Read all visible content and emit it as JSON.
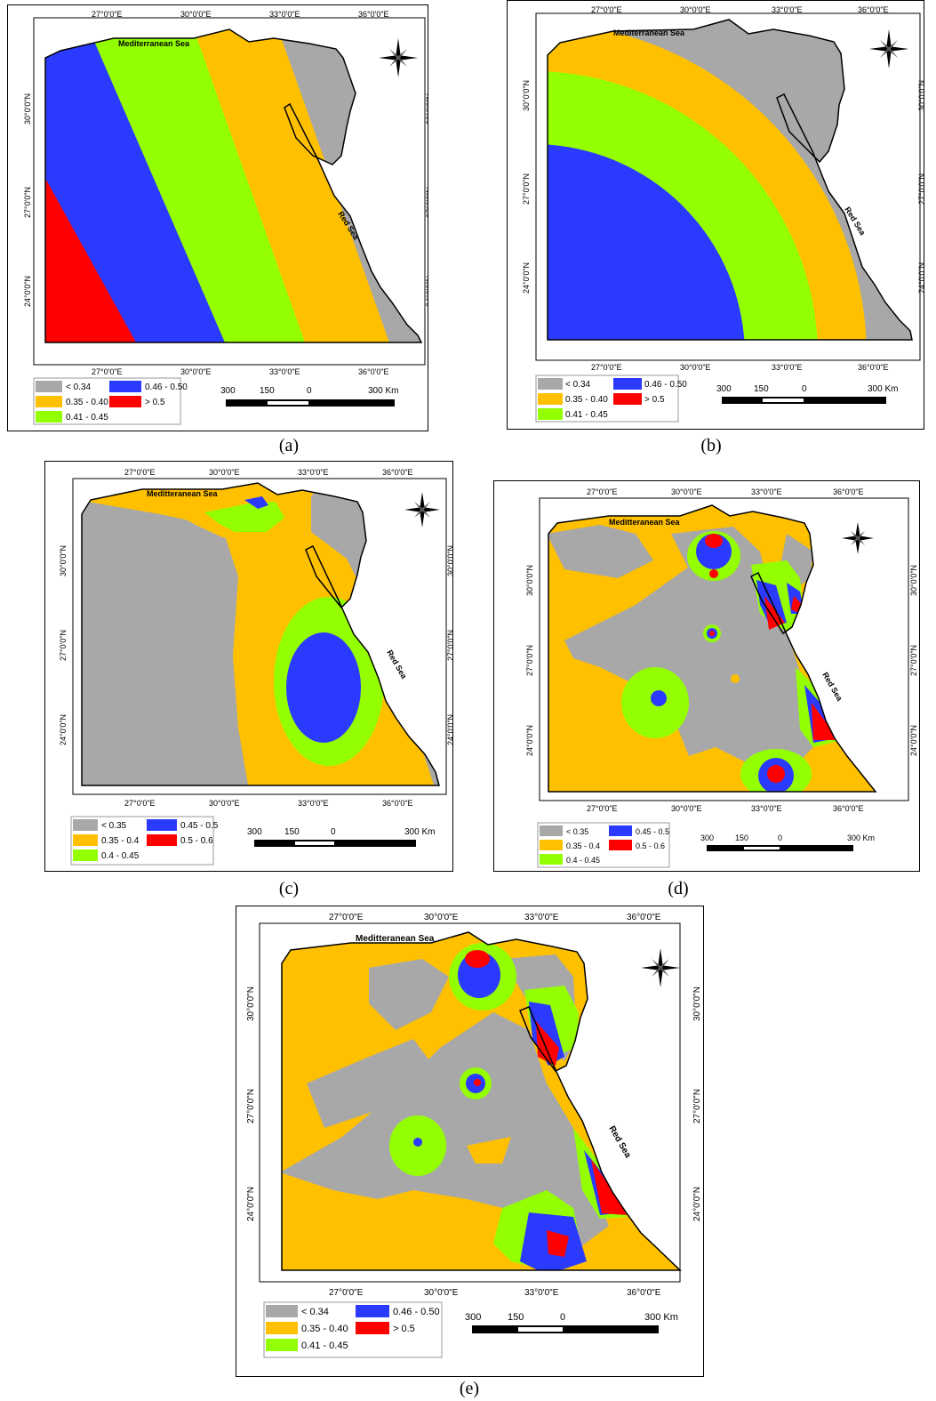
{
  "colors": {
    "gray": "#a8a8a8",
    "orange": "#ffc000",
    "green": "#94ff00",
    "blue": "#2b3aff",
    "red": "#ff0000"
  },
  "axis_labels": {
    "lon": [
      "27°0'0\"E",
      "30°0'0\"E",
      "33°0'0\"E",
      "36°0'0\"E"
    ],
    "lat": [
      "30°0'0\"N",
      "27°0'0\"N",
      "24°0'0\"N"
    ]
  },
  "labels": {
    "mediterranean": "Mediterranean Sea",
    "mediterranean_alt": "Meditteranean Sea",
    "red_sea": "Red Sea"
  },
  "scale_bar": {
    "t0": "300",
    "t1": "150",
    "t2": "0",
    "t3": "300 Km"
  },
  "legends": {
    "ae": [
      "<  0.34",
      "0.35 - 0.40",
      "0.41 - 0.45",
      "0.46 - 0.50",
      "> 0.5"
    ],
    "cd": [
      "< 0.35",
      "0.35 - 0.4",
      "0.4 - 0.45",
      "0.45 - 0.5",
      "0.5 - 0.6"
    ]
  },
  "panels": [
    {
      "caption": "(a)"
    },
    {
      "caption": "(b)"
    },
    {
      "caption": "(c)"
    },
    {
      "caption": "(d)"
    },
    {
      "caption": "(e)"
    }
  ]
}
